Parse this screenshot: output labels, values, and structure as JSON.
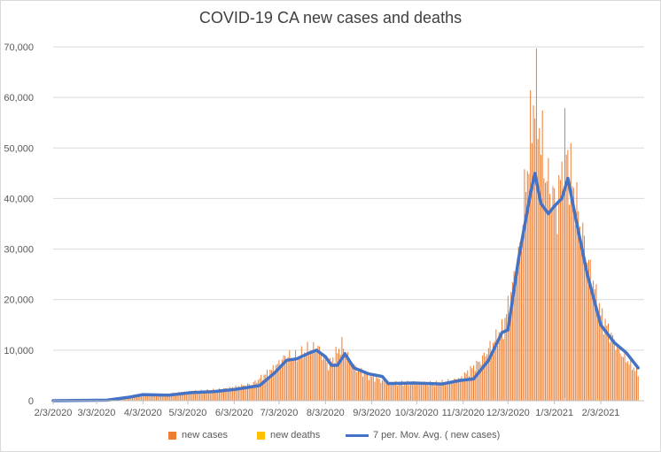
{
  "chart_data": {
    "type": "bar",
    "title": "COVID-19 CA new cases and deaths",
    "xlabel": "",
    "ylabel": "",
    "ylim": [
      0,
      70000
    ],
    "y_ticks": [
      "0",
      "10,000",
      "20,000",
      "30,000",
      "40,000",
      "50,000",
      "60,000",
      "70,000"
    ],
    "x_ticks": [
      "2/3/2020",
      "3/3/2020",
      "4/3/2020",
      "5/3/2020",
      "6/3/2020",
      "7/3/2020",
      "8/3/2020",
      "9/3/2020",
      "10/3/2020",
      "11/3/2020",
      "12/3/2020",
      "1/3/2021",
      "2/3/2021"
    ],
    "grid": true,
    "legend_position": "bottom",
    "series": [
      {
        "name": "new cases",
        "kind": "bar",
        "color": "#ED7D31",
        "points": [
          [
            "2020-02-03",
            0
          ],
          [
            "2020-03-01",
            30
          ],
          [
            "2020-03-15",
            200
          ],
          [
            "2020-04-01",
            1200
          ],
          [
            "2020-04-15",
            1100
          ],
          [
            "2020-05-01",
            1700
          ],
          [
            "2020-05-15",
            1900
          ],
          [
            "2020-06-01",
            2500
          ],
          [
            "2020-06-15",
            3300
          ],
          [
            "2020-06-30",
            6500
          ],
          [
            "2020-07-08",
            9000
          ],
          [
            "2020-07-15",
            8500
          ],
          [
            "2020-07-22",
            10000
          ],
          [
            "2020-07-29",
            10500
          ],
          [
            "2020-08-05",
            7000
          ],
          [
            "2020-08-14",
            11000
          ],
          [
            "2020-08-21",
            7000
          ],
          [
            "2020-09-01",
            5000
          ],
          [
            "2020-09-15",
            3300
          ],
          [
            "2020-10-01",
            3500
          ],
          [
            "2020-10-15",
            3300
          ],
          [
            "2020-11-01",
            4300
          ],
          [
            "2020-11-15",
            8000
          ],
          [
            "2020-11-30",
            14500
          ],
          [
            "2020-12-10",
            28000
          ],
          [
            "2020-12-21",
            61500
          ],
          [
            "2020-12-28",
            45000
          ],
          [
            "2021-01-05",
            38000
          ],
          [
            "2021-01-10",
            51000
          ],
          [
            "2021-01-15",
            43000
          ],
          [
            "2021-01-25",
            28000
          ],
          [
            "2021-02-03",
            17000
          ],
          [
            "2021-02-15",
            10000
          ],
          [
            "2021-02-28",
            5500
          ]
        ]
      },
      {
        "name": "new deaths",
        "kind": "bar",
        "color": "#FFC000",
        "points": [
          [
            "2020-04-01",
            60
          ],
          [
            "2020-07-15",
            120
          ],
          [
            "2020-08-05",
            150
          ],
          [
            "2020-12-15",
            300
          ],
          [
            "2021-01-10",
            600
          ],
          [
            "2021-02-01",
            400
          ],
          [
            "2021-02-28",
            200
          ]
        ]
      },
      {
        "name": "7 per. Mov. Avg. ( new cases)",
        "kind": "line",
        "color": "#4472C4",
        "points": [
          [
            "2020-02-03",
            0
          ],
          [
            "2020-03-10",
            100
          ],
          [
            "2020-03-25",
            700
          ],
          [
            "2020-04-03",
            1200
          ],
          [
            "2020-04-20",
            1100
          ],
          [
            "2020-05-05",
            1600
          ],
          [
            "2020-05-20",
            1800
          ],
          [
            "2020-06-03",
            2200
          ],
          [
            "2020-06-20",
            3000
          ],
          [
            "2020-06-30",
            5500
          ],
          [
            "2020-07-08",
            8000
          ],
          [
            "2020-07-15",
            8300
          ],
          [
            "2020-07-22",
            9300
          ],
          [
            "2020-07-28",
            10000
          ],
          [
            "2020-08-03",
            8700
          ],
          [
            "2020-08-07",
            7000
          ],
          [
            "2020-08-11",
            7000
          ],
          [
            "2020-08-16",
            9300
          ],
          [
            "2020-08-22",
            6500
          ],
          [
            "2020-09-01",
            5300
          ],
          [
            "2020-09-10",
            4800
          ],
          [
            "2020-09-14",
            3400
          ],
          [
            "2020-10-01",
            3500
          ],
          [
            "2020-10-20",
            3300
          ],
          [
            "2020-11-01",
            4000
          ],
          [
            "2020-11-10",
            4300
          ],
          [
            "2020-11-20",
            8000
          ],
          [
            "2020-11-29",
            13500
          ],
          [
            "2020-12-03",
            14000
          ],
          [
            "2020-12-10",
            28000
          ],
          [
            "2020-12-18",
            41000
          ],
          [
            "2020-12-21",
            45000
          ],
          [
            "2020-12-25",
            39000
          ],
          [
            "2020-12-30",
            37000
          ],
          [
            "2021-01-03",
            38500
          ],
          [
            "2021-01-08",
            40000
          ],
          [
            "2021-01-12",
            44000
          ],
          [
            "2021-01-18",
            35000
          ],
          [
            "2021-01-25",
            25000
          ],
          [
            "2021-02-03",
            15000
          ],
          [
            "2021-02-12",
            11500
          ],
          [
            "2021-02-20",
            9500
          ],
          [
            "2021-02-28",
            6500
          ]
        ]
      }
    ]
  }
}
